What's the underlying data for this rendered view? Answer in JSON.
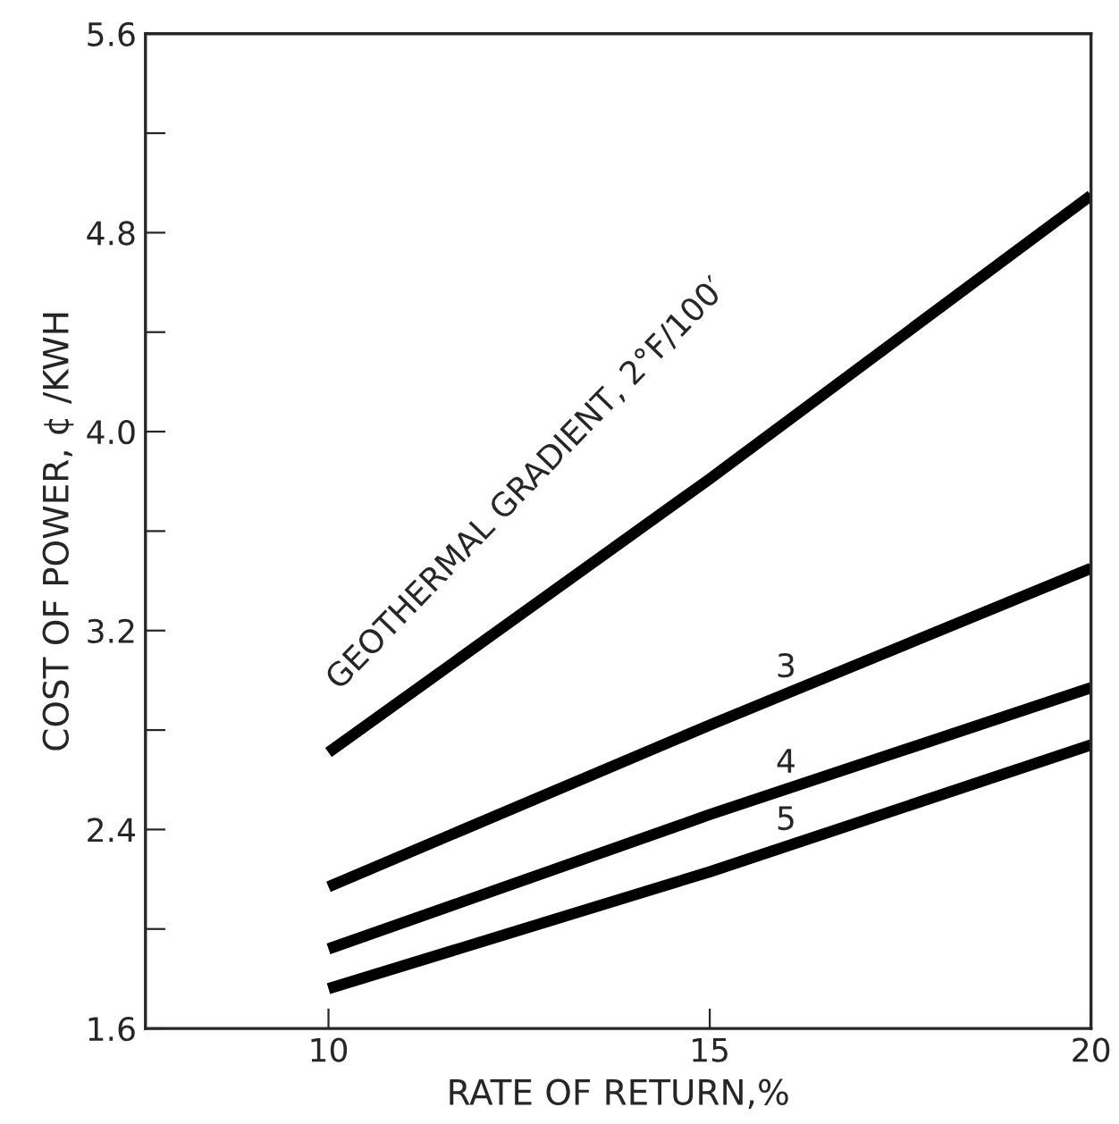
{
  "chart_data": {
    "type": "line",
    "xlabel": "RATE OF RETURN,%",
    "ylabel": "COST OF POWER, ¢ /KWH",
    "x": [
      10,
      15,
      20
    ],
    "series": [
      {
        "name": "GEOTHERMAL GRADIENT, 2°F/100′",
        "color": "#000000",
        "values": [
          2.71,
          3.81,
          4.95
        ]
      },
      {
        "name": "3",
        "color": "#000000",
        "values": [
          2.17,
          2.82,
          3.45
        ]
      },
      {
        "name": "4",
        "color": "#000000",
        "values": [
          1.92,
          2.46,
          2.97
        ]
      },
      {
        "name": "5",
        "color": "#000000",
        "values": [
          1.76,
          2.23,
          2.74
        ]
      }
    ],
    "xlim": [
      7.6,
      20
    ],
    "xticks": [
      10,
      15,
      20
    ],
    "ylim": [
      1.6,
      5.6
    ],
    "yticks": [
      1.6,
      {
        "value": 2.0,
        "label": null
      },
      2.4,
      {
        "value": 2.8,
        "label": null
      },
      3.2,
      {
        "value": 3.6,
        "label": null
      },
      "4.0",
      {
        "value": 4.4,
        "label": null
      },
      4.8,
      {
        "value": 5.2,
        "label": null
      },
      5.6
    ],
    "grid": false,
    "legend": false,
    "marker": "none",
    "line_style": "solid"
  }
}
